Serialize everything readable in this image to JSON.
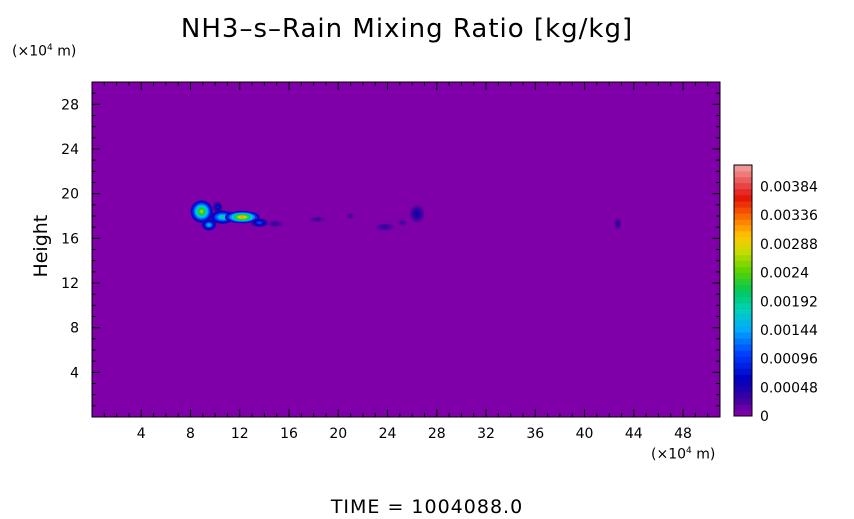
{
  "chart_data": {
    "type": "heatmap",
    "title": "NH3–s–Rain Mixing Ratio [kg/kg]",
    "ylabel": "Height",
    "x_unit_prefix": "(×10",
    "x_unit_exp": "4",
    "x_unit_suffix": " m)",
    "y_unit_prefix": "(×10",
    "y_unit_exp": "4",
    "y_unit_suffix": " m)",
    "xlim": [
      0,
      51
    ],
    "ylim": [
      0,
      30
    ],
    "x_ticks": [
      4,
      8,
      12,
      16,
      20,
      24,
      28,
      32,
      36,
      40,
      44,
      48
    ],
    "y_ticks": [
      4,
      8,
      12,
      16,
      20,
      24,
      28
    ],
    "background_color": "#7f00a8",
    "colorbar": {
      "ticks": [
        {
          "value": 0,
          "label": "0"
        },
        {
          "value": 0.00048,
          "label": "0.00048"
        },
        {
          "value": 0.00096,
          "label": "0.00096"
        },
        {
          "value": 0.00144,
          "label": "0.00144"
        },
        {
          "value": 0.00192,
          "label": "0.00192"
        },
        {
          "value": 0.0024,
          "label": "0.0024"
        },
        {
          "value": 0.00288,
          "label": "0.00288"
        },
        {
          "value": 0.00336,
          "label": "0.00336"
        },
        {
          "value": 0.00384,
          "label": "0.00384"
        }
      ],
      "max": 0.0042,
      "levels": 42
    },
    "features": [
      {
        "x": 8.9,
        "y": 18.4,
        "rx": 0.9,
        "ry": 1.0,
        "peak": 0.003
      },
      {
        "x": 9.5,
        "y": 17.2,
        "rx": 0.6,
        "ry": 0.5,
        "peak": 0.0018
      },
      {
        "x": 10.2,
        "y": 18.8,
        "rx": 0.4,
        "ry": 0.5,
        "peak": 0.0009
      },
      {
        "x": 10.6,
        "y": 17.9,
        "rx": 1.0,
        "ry": 0.6,
        "peak": 0.0022
      },
      {
        "x": 12.2,
        "y": 17.9,
        "rx": 1.4,
        "ry": 0.55,
        "peak": 0.0036
      },
      {
        "x": 13.6,
        "y": 17.4,
        "rx": 0.7,
        "ry": 0.4,
        "peak": 0.0012
      },
      {
        "x": 14.9,
        "y": 17.3,
        "rx": 0.6,
        "ry": 0.3,
        "peak": 0.0004
      },
      {
        "x": 18.3,
        "y": 17.7,
        "rx": 0.7,
        "ry": 0.25,
        "peak": 0.0003
      },
      {
        "x": 21.0,
        "y": 18.0,
        "rx": 0.3,
        "ry": 0.3,
        "peak": 0.0003
      },
      {
        "x": 23.8,
        "y": 17.0,
        "rx": 0.8,
        "ry": 0.35,
        "peak": 0.0004
      },
      {
        "x": 26.4,
        "y": 18.2,
        "rx": 0.6,
        "ry": 0.8,
        "peak": 0.0006
      },
      {
        "x": 25.2,
        "y": 17.4,
        "rx": 0.4,
        "ry": 0.3,
        "peak": 0.0003
      },
      {
        "x": 42.7,
        "y": 17.3,
        "rx": 0.3,
        "ry": 0.5,
        "peak": 0.0004
      }
    ],
    "time_label": "TIME  =  1004088.0"
  }
}
